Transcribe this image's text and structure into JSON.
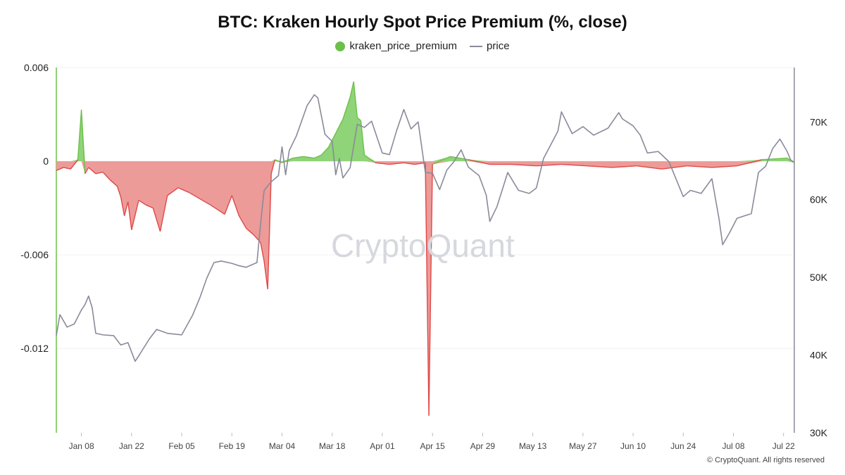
{
  "title": "BTC: Kraken Hourly Spot Price Premium (%, close)",
  "legend": {
    "premium_label": "kraken_price_premium",
    "price_label": "price"
  },
  "watermark": "CryptoQuant",
  "copyright": "© CryptoQuant. All rights reserved",
  "colors": {
    "positive": "#6cc04a",
    "negative": "#e04848",
    "negative_fill": "#ec9b98",
    "positive_fill": "#8fd478",
    "price": "#8a8a9a",
    "left_axis": "#6cc04a",
    "right_axis": "#8a8a9a",
    "grid": "#f0f0f2"
  },
  "chart_data": {
    "type": "line",
    "x_axis": {
      "type": "date",
      "range": [
        "2024-01-01",
        "2024-07-25"
      ],
      "ticks": [
        "Jan 08",
        "Jan 22",
        "Feb 05",
        "Feb 19",
        "Mar 04",
        "Mar 18",
        "Apr 01",
        "Apr 15",
        "Apr 29",
        "May 13",
        "May 27",
        "Jun 10",
        "Jun 24",
        "Jul 08",
        "Jul 22"
      ],
      "tick_dates": [
        "2024-01-08",
        "2024-01-22",
        "2024-02-05",
        "2024-02-19",
        "2024-03-04",
        "2024-03-18",
        "2024-04-01",
        "2024-04-15",
        "2024-04-29",
        "2024-05-13",
        "2024-05-27",
        "2024-06-10",
        "2024-06-24",
        "2024-07-08",
        "2024-07-22"
      ]
    },
    "y_left": {
      "ticks": [
        0.006,
        0,
        -0.006,
        -0.012
      ],
      "tick_labels": [
        "0.006",
        "0",
        "-0.006",
        "-0.012"
      ],
      "range": [
        -0.0174,
        0.006
      ]
    },
    "y_right": {
      "ticks": [
        70000,
        60000,
        50000,
        40000,
        30000
      ],
      "tick_labels": [
        "70K",
        "60K",
        "50K",
        "40K",
        "30K"
      ],
      "range": [
        30000,
        77000
      ]
    },
    "grid": true,
    "legend_position": "top-center",
    "series": [
      {
        "name": "kraken_price_premium",
        "axis": "left",
        "type": "area",
        "points": [
          [
            "2024-01-01",
            -0.0006
          ],
          [
            "2024-01-03",
            -0.0004
          ],
          [
            "2024-01-05",
            -0.0005
          ],
          [
            "2024-01-07",
            0.0001
          ],
          [
            "2024-01-08",
            0.0033
          ],
          [
            "2024-01-09",
            -0.0008
          ],
          [
            "2024-01-10",
            -0.0004
          ],
          [
            "2024-01-12",
            -0.0008
          ],
          [
            "2024-01-14",
            -0.0007
          ],
          [
            "2024-01-16",
            -0.0012
          ],
          [
            "2024-01-18",
            -0.0016
          ],
          [
            "2024-01-19",
            -0.0023
          ],
          [
            "2024-01-20",
            -0.0035
          ],
          [
            "2024-01-21",
            -0.0026
          ],
          [
            "2024-01-22",
            -0.0044
          ],
          [
            "2024-01-24",
            -0.0025
          ],
          [
            "2024-01-26",
            -0.0028
          ],
          [
            "2024-01-28",
            -0.003
          ],
          [
            "2024-01-30",
            -0.0045
          ],
          [
            "2024-02-01",
            -0.0022
          ],
          [
            "2024-02-04",
            -0.0017
          ],
          [
            "2024-02-07",
            -0.002
          ],
          [
            "2024-02-10",
            -0.0024
          ],
          [
            "2024-02-13",
            -0.0028
          ],
          [
            "2024-02-15",
            -0.0031
          ],
          [
            "2024-02-17",
            -0.0034
          ],
          [
            "2024-02-19",
            -0.0022
          ],
          [
            "2024-02-21",
            -0.0035
          ],
          [
            "2024-02-23",
            -0.0043
          ],
          [
            "2024-02-25",
            -0.0047
          ],
          [
            "2024-02-27",
            -0.0052
          ],
          [
            "2024-02-28",
            -0.0064
          ],
          [
            "2024-02-29",
            -0.0082
          ],
          [
            "2024-03-01",
            -0.0008
          ],
          [
            "2024-03-02",
            0.0001
          ],
          [
            "2024-03-04",
            -0.0001
          ],
          [
            "2024-03-07",
            0.0002
          ],
          [
            "2024-03-10",
            0.0003
          ],
          [
            "2024-03-13",
            0.0002
          ],
          [
            "2024-03-15",
            0.0004
          ],
          [
            "2024-03-17",
            0.0009
          ],
          [
            "2024-03-19",
            0.0018
          ],
          [
            "2024-03-21",
            0.0027
          ],
          [
            "2024-03-23",
            0.0041
          ],
          [
            "2024-03-24",
            0.0051
          ],
          [
            "2024-03-25",
            0.0028
          ],
          [
            "2024-03-26",
            0.0026
          ],
          [
            "2024-03-27",
            0.0004
          ],
          [
            "2024-03-30",
            -0.0001
          ],
          [
            "2024-04-03",
            -0.0002
          ],
          [
            "2024-04-07",
            -0.0001
          ],
          [
            "2024-04-10",
            -0.0002
          ],
          [
            "2024-04-13",
            -0.0001
          ],
          [
            "2024-04-14",
            -0.0163
          ],
          [
            "2024-04-15",
            -0.0002
          ],
          [
            "2024-04-20",
            0.0003
          ],
          [
            "2024-04-25",
            0.0001
          ],
          [
            "2024-05-01",
            -0.0002
          ],
          [
            "2024-05-07",
            -0.0002
          ],
          [
            "2024-05-14",
            -0.0003
          ],
          [
            "2024-05-21",
            -0.0002
          ],
          [
            "2024-05-28",
            -0.0003
          ],
          [
            "2024-06-04",
            -0.0004
          ],
          [
            "2024-06-11",
            -0.0003
          ],
          [
            "2024-06-18",
            -0.0005
          ],
          [
            "2024-06-25",
            -0.0003
          ],
          [
            "2024-07-02",
            -0.0004
          ],
          [
            "2024-07-09",
            -0.0003
          ],
          [
            "2024-07-16",
            0.0001
          ],
          [
            "2024-07-23",
            0.0002
          ],
          [
            "2024-07-25",
            -0.0001
          ]
        ]
      },
      {
        "name": "price",
        "axis": "right",
        "type": "line",
        "points": [
          [
            "2024-01-01",
            42500
          ],
          [
            "2024-01-02",
            45200
          ],
          [
            "2024-01-04",
            43600
          ],
          [
            "2024-01-06",
            44000
          ],
          [
            "2024-01-08",
            45800
          ],
          [
            "2024-01-09",
            46500
          ],
          [
            "2024-01-10",
            47600
          ],
          [
            "2024-01-11",
            46100
          ],
          [
            "2024-01-12",
            42800
          ],
          [
            "2024-01-14",
            42600
          ],
          [
            "2024-01-17",
            42500
          ],
          [
            "2024-01-19",
            41300
          ],
          [
            "2024-01-21",
            41600
          ],
          [
            "2024-01-23",
            39200
          ],
          [
            "2024-01-24",
            39900
          ],
          [
            "2024-01-27",
            42100
          ],
          [
            "2024-01-29",
            43300
          ],
          [
            "2024-02-01",
            42800
          ],
          [
            "2024-02-05",
            42600
          ],
          [
            "2024-02-08",
            45100
          ],
          [
            "2024-02-10",
            47300
          ],
          [
            "2024-02-12",
            49900
          ],
          [
            "2024-02-14",
            51900
          ],
          [
            "2024-02-16",
            52100
          ],
          [
            "2024-02-19",
            51800
          ],
          [
            "2024-02-21",
            51500
          ],
          [
            "2024-02-23",
            51300
          ],
          [
            "2024-02-26",
            51900
          ],
          [
            "2024-02-27",
            56800
          ],
          [
            "2024-02-28",
            61200
          ],
          [
            "2024-03-01",
            62300
          ],
          [
            "2024-03-03",
            63100
          ],
          [
            "2024-03-04",
            66800
          ],
          [
            "2024-03-05",
            63200
          ],
          [
            "2024-03-06",
            66300
          ],
          [
            "2024-03-08",
            68200
          ],
          [
            "2024-03-11",
            72100
          ],
          [
            "2024-03-13",
            73500
          ],
          [
            "2024-03-14",
            73100
          ],
          [
            "2024-03-16",
            68400
          ],
          [
            "2024-03-18",
            67500
          ],
          [
            "2024-03-19",
            63200
          ],
          [
            "2024-03-20",
            65300
          ],
          [
            "2024-03-21",
            62800
          ],
          [
            "2024-03-23",
            64100
          ],
          [
            "2024-03-25",
            69700
          ],
          [
            "2024-03-27",
            69300
          ],
          [
            "2024-03-29",
            70100
          ],
          [
            "2024-04-01",
            66000
          ],
          [
            "2024-04-03",
            65800
          ],
          [
            "2024-04-05",
            68900
          ],
          [
            "2024-04-07",
            71600
          ],
          [
            "2024-04-09",
            69100
          ],
          [
            "2024-04-11",
            70000
          ],
          [
            "2024-04-13",
            63500
          ],
          [
            "2024-04-15",
            63400
          ],
          [
            "2024-04-17",
            61300
          ],
          [
            "2024-04-19",
            63800
          ],
          [
            "2024-04-21",
            64900
          ],
          [
            "2024-04-23",
            66400
          ],
          [
            "2024-04-25",
            64200
          ],
          [
            "2024-04-28",
            63100
          ],
          [
            "2024-04-30",
            60600
          ],
          [
            "2024-05-01",
            57200
          ],
          [
            "2024-05-03",
            59100
          ],
          [
            "2024-05-06",
            63500
          ],
          [
            "2024-05-09",
            61200
          ],
          [
            "2024-05-12",
            60800
          ],
          [
            "2024-05-14",
            61500
          ],
          [
            "2024-05-16",
            65300
          ],
          [
            "2024-05-20",
            68800
          ],
          [
            "2024-05-21",
            71300
          ],
          [
            "2024-05-24",
            68500
          ],
          [
            "2024-05-27",
            69400
          ],
          [
            "2024-05-30",
            68300
          ],
          [
            "2024-06-03",
            69200
          ],
          [
            "2024-06-06",
            71200
          ],
          [
            "2024-06-07",
            70400
          ],
          [
            "2024-06-10",
            69500
          ],
          [
            "2024-06-12",
            68300
          ],
          [
            "2024-06-14",
            66000
          ],
          [
            "2024-06-17",
            66200
          ],
          [
            "2024-06-20",
            64900
          ],
          [
            "2024-06-24",
            60400
          ],
          [
            "2024-06-26",
            61200
          ],
          [
            "2024-06-29",
            60800
          ],
          [
            "2024-07-02",
            62700
          ],
          [
            "2024-07-04",
            57500
          ],
          [
            "2024-07-05",
            54200
          ],
          [
            "2024-07-07",
            55800
          ],
          [
            "2024-07-09",
            57600
          ],
          [
            "2024-07-11",
            57900
          ],
          [
            "2024-07-13",
            58200
          ],
          [
            "2024-07-15",
            63500
          ],
          [
            "2024-07-17",
            64300
          ],
          [
            "2024-07-19",
            66600
          ],
          [
            "2024-07-21",
            67800
          ],
          [
            "2024-07-23",
            66200
          ],
          [
            "2024-07-24",
            65100
          ],
          [
            "2024-07-25",
            64800
          ]
        ]
      }
    ]
  }
}
